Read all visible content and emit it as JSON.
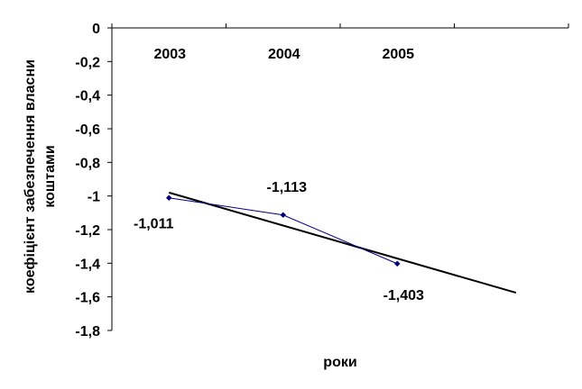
{
  "chart_data": {
    "type": "line",
    "title": "",
    "xlabel": "роки",
    "ylabel": [
      "коефіцієнт забезпечення власни",
      "коштами"
    ],
    "categories": [
      "2003",
      "2004",
      "2005"
    ],
    "series": [
      {
        "values": [
          -1.011,
          -1.113,
          -1.403
        ],
        "color": "#00007f"
      }
    ],
    "data_labels": [
      "-1,011",
      "-1,113",
      "-1,403"
    ],
    "trendline": {
      "type": "linear",
      "color": "#000000"
    },
    "ylim": [
      -1.8,
      0
    ],
    "ystep": 0.2,
    "yticks": [
      "0",
      "-0,2",
      "-0,4",
      "-0,6",
      "-0,8",
      "-1",
      "-1,2",
      "-1,4",
      "-1,6",
      "-1,8"
    ],
    "grid": false,
    "legend": "none"
  }
}
